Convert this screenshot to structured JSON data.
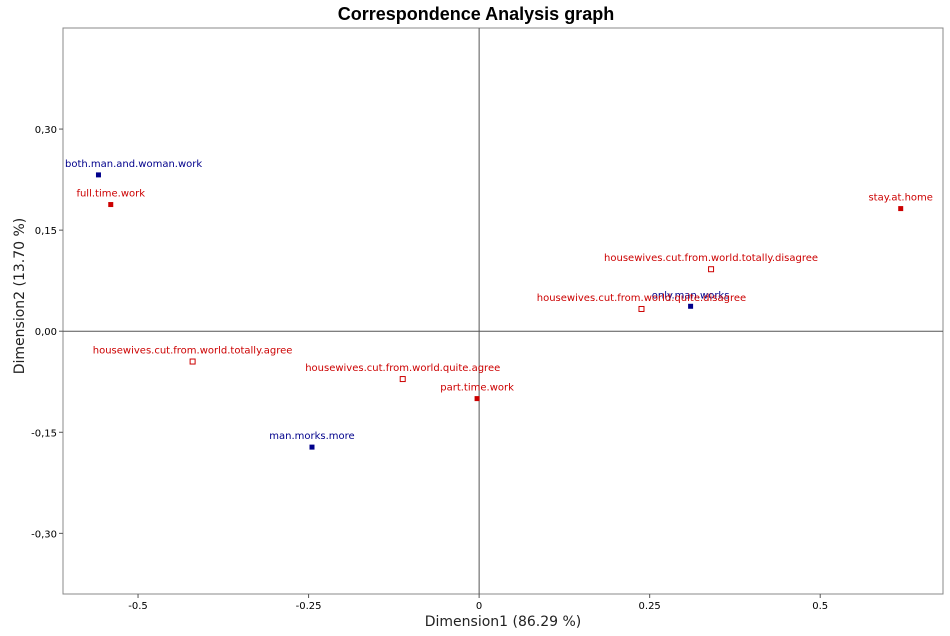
{
  "chart_data": {
    "type": "scatter",
    "title": "Correspondence Analysis graph",
    "xlabel": "Dimension1 (86.29 %)",
    "ylabel": "Dimension2 (13.70 %)",
    "xlim": [
      -0.61,
      0.68
    ],
    "ylim": [
      -0.39,
      0.45
    ],
    "x_ticks": [
      {
        "value": -0.5,
        "label": "-0.5"
      },
      {
        "value": -0.25,
        "label": "-0.25"
      },
      {
        "value": 0,
        "label": "0"
      },
      {
        "value": 0.25,
        "label": "0.25"
      },
      {
        "value": 0.5,
        "label": "0.5"
      }
    ],
    "y_ticks": [
      {
        "value": 0.3,
        "label": "0,30"
      },
      {
        "value": 0.15,
        "label": "0,15"
      },
      {
        "value": 0,
        "label": "0,00"
      },
      {
        "value": -0.15,
        "label": "-0,15"
      },
      {
        "value": -0.3,
        "label": "-0,30"
      }
    ],
    "grid": false,
    "reference_lines": {
      "x": 0,
      "y": 0
    },
    "colors": {
      "blue": "#00008B",
      "red": "#CC0000"
    },
    "points": [
      {
        "label": "both.man.and.woman.work",
        "x": -0.558,
        "y": 0.232,
        "color": "blue",
        "marker": "filled"
      },
      {
        "label": "full.time.work",
        "x": -0.54,
        "y": 0.188,
        "color": "red",
        "marker": "filled"
      },
      {
        "label": "stay.at.home",
        "x": 0.618,
        "y": 0.182,
        "color": "red",
        "marker": "filled"
      },
      {
        "label": "housewives.cut.from.world.totally.disagree",
        "x": 0.34,
        "y": 0.092,
        "color": "red",
        "marker": "hollow"
      },
      {
        "label": "only.man.works",
        "x": 0.31,
        "y": 0.037,
        "color": "blue",
        "marker": "filled"
      },
      {
        "label": "housewives.cut.from.world.quite.disagree",
        "x": 0.238,
        "y": 0.033,
        "color": "red",
        "marker": "hollow"
      },
      {
        "label": "housewives.cut.from.world.totally.agree",
        "x": -0.42,
        "y": -0.045,
        "color": "red",
        "marker": "hollow"
      },
      {
        "label": "housewives.cut.from.world.quite.agree",
        "x": -0.112,
        "y": -0.071,
        "color": "red",
        "marker": "hollow"
      },
      {
        "label": "part.time.work",
        "x": -0.003,
        "y": -0.1,
        "color": "red",
        "marker": "filled"
      },
      {
        "label": "man.morks.more",
        "x": -0.245,
        "y": -0.172,
        "color": "blue",
        "marker": "filled"
      }
    ]
  }
}
